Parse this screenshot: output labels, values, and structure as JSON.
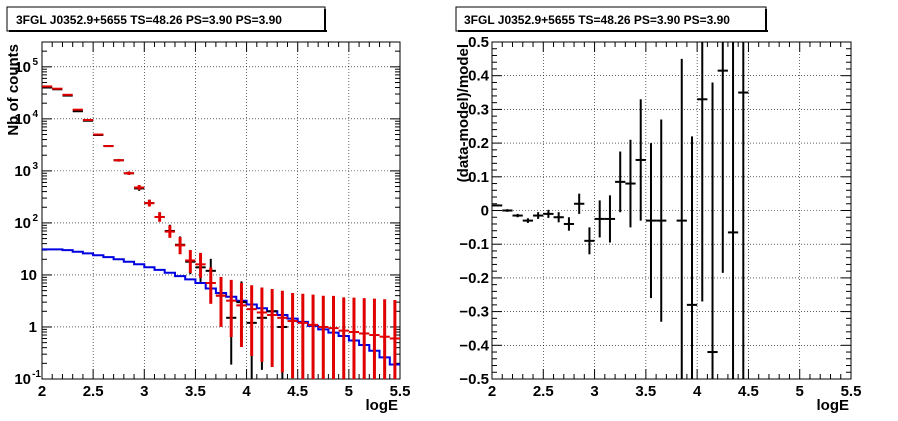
{
  "panels": [
    {
      "title": "3FGL J0352.9+5655 TS=48.26 PS=3.90 PS=3.90"
    },
    {
      "title": "3FGL J0352.9+5655 TS=48.26 PS=3.90 PS=3.90"
    }
  ],
  "colors": {
    "data": "#000000",
    "model": "#e00000",
    "background": "#0000e0",
    "grid": "#000000"
  },
  "chart_data": [
    {
      "type": "scatter",
      "title": "3FGL J0352.9+5655 TS=48.26 PS=3.90 PS=3.90",
      "xlabel": "logE",
      "ylabel": "Nb of counts",
      "xlim": [
        2,
        5.5
      ],
      "ylim": [
        0.1,
        300000
      ],
      "yscale": "log",
      "grid": true,
      "x_ticks": [
        "2",
        "2.5",
        "3",
        "3.5",
        "4",
        "4.5",
        "5",
        "5.5"
      ],
      "y_ticks": [
        {
          "value": 0.1,
          "label": "10",
          "exp": "-1"
        },
        {
          "value": 1,
          "label": "1",
          "exp": ""
        },
        {
          "value": 10,
          "label": "10",
          "exp": ""
        },
        {
          "value": 100,
          "label": "10",
          "exp": "2"
        },
        {
          "value": 1000,
          "label": "10",
          "exp": "3"
        },
        {
          "value": 10000,
          "label": "10",
          "exp": "4"
        },
        {
          "value": 100000,
          "label": "10",
          "exp": "5"
        }
      ],
      "x": [
        2.05,
        2.15,
        2.25,
        2.35,
        2.45,
        2.55,
        2.65,
        2.75,
        2.85,
        2.95,
        3.05,
        3.15,
        3.25,
        3.35,
        3.45,
        3.55,
        3.65,
        3.75,
        3.85,
        3.95,
        4.05,
        4.15,
        4.25,
        4.35,
        4.45,
        4.55,
        4.65,
        4.75,
        4.85,
        4.95,
        5.05,
        5.15,
        5.25,
        5.35,
        5.45
      ],
      "series": [
        {
          "name": "data",
          "values": [
            40000,
            37000,
            28000,
            14000,
            9200,
            4900,
            3000,
            1600,
            900,
            460,
            240,
            130,
            70,
            38,
            18,
            14,
            12,
            4,
            1.5,
            3,
            1.2,
            1.5,
            2,
            1,
            null,
            null,
            null,
            null,
            null,
            null,
            null,
            null,
            null,
            null,
            null
          ],
          "err_low": [
            0.005,
            0.005,
            0.005,
            0.008,
            0.01,
            0.014,
            0.018,
            0.025,
            0.033,
            0.047,
            0.065,
            0.09,
            0.12,
            0.17,
            0.24,
            0.28,
            0.3,
            0.55,
            0.9,
            0.6,
            1.5,
            1.0,
            0.6,
            1.5
          ],
          "err_high": [
            0.005,
            0.005,
            0.005,
            0.008,
            0.01,
            0.014,
            0.018,
            0.025,
            0.033,
            0.047,
            0.065,
            0.09,
            0.12,
            0.16,
            0.2,
            0.22,
            0.23,
            0.35,
            0.5,
            0.4,
            0.55,
            0.5,
            0.42,
            0.65
          ]
        },
        {
          "name": "model",
          "values": [
            42000,
            38000,
            29000,
            15000,
            9500,
            5000,
            3000,
            1600,
            900,
            480,
            240,
            130,
            68,
            37,
            19,
            16,
            7,
            4,
            3.2,
            2.6,
            2.2,
            1.9,
            1.7,
            1.5,
            1.3,
            1.2,
            1.1,
            1.0,
            0.95,
            0.85,
            0.8,
            0.75,
            0.7,
            0.65,
            0.6
          ],
          "err_low": [
            0.005,
            0.005,
            0.005,
            0.008,
            0.01,
            0.014,
            0.018,
            0.025,
            0.033,
            0.047,
            0.065,
            0.09,
            0.12,
            0.17,
            0.24,
            0.26,
            0.4,
            0.6,
            0.7,
            0.8,
            0.9,
            0.95,
            1.0,
            1.05,
            1.1,
            1.15,
            1.2,
            1.25,
            1.3,
            1.35,
            1.4,
            1.45,
            1.5,
            1.55,
            1.6
          ],
          "err_high": [
            0.005,
            0.005,
            0.005,
            0.008,
            0.01,
            0.014,
            0.018,
            0.025,
            0.033,
            0.047,
            0.065,
            0.09,
            0.12,
            0.16,
            0.2,
            0.22,
            0.3,
            0.36,
            0.4,
            0.43,
            0.46,
            0.48,
            0.5,
            0.52,
            0.54,
            0.56,
            0.58,
            0.6,
            0.62,
            0.64,
            0.66,
            0.68,
            0.7,
            0.72,
            0.74
          ]
        },
        {
          "name": "background",
          "type": "step",
          "values": [
            31,
            31,
            30,
            28,
            26,
            24,
            22,
            20,
            18,
            16,
            14,
            12.5,
            11,
            9.5,
            8.2,
            7,
            5.5,
            4.5,
            3.8,
            3.2,
            2.7,
            2.3,
            2.0,
            1.7,
            1.45,
            1.25,
            1.05,
            0.9,
            0.78,
            0.67,
            0.55,
            0.45,
            0.35,
            0.26,
            0.19
          ]
        }
      ]
    },
    {
      "type": "scatter",
      "title": "3FGL J0352.9+5655 TS=48.26 PS=3.90 PS=3.90",
      "xlabel": "logE",
      "ylabel": "(data-model)/model",
      "xlim": [
        2,
        5.5
      ],
      "ylim": [
        -0.5,
        0.5
      ],
      "grid": true,
      "x_ticks": [
        "2",
        "2.5",
        "3",
        "3.5",
        "4",
        "4.5",
        "5",
        "5.5"
      ],
      "y_ticks": [
        "0.5",
        "0.4",
        "0.3",
        "0.2",
        "0.1",
        "0",
        "−0.1",
        "−0.2",
        "−0.3",
        "−0.4",
        "−0.5"
      ],
      "x": [
        2.05,
        2.15,
        2.25,
        2.35,
        2.45,
        2.55,
        2.65,
        2.75,
        2.85,
        2.95,
        3.05,
        3.15,
        3.25,
        3.35,
        3.45,
        3.55,
        3.65,
        3.85,
        3.95,
        4.05,
        4.15,
        4.25,
        4.35,
        4.45
      ],
      "series": [
        {
          "name": "residual",
          "values": [
            0.015,
            0.0,
            -0.015,
            -0.03,
            -0.015,
            -0.01,
            -0.02,
            -0.04,
            0.02,
            -0.09,
            -0.025,
            -0.025,
            0.085,
            0.08,
            0.15,
            -0.03,
            -0.03,
            -0.03,
            -0.28,
            0.33,
            -0.42,
            0.415,
            -0.065,
            0.35
          ],
          "err": [
            0.003,
            0.004,
            0.005,
            0.007,
            0.01,
            0.012,
            0.015,
            0.02,
            0.03,
            0.04,
            0.055,
            0.07,
            0.09,
            0.13,
            0.18,
            0.23,
            0.3,
            0.48,
            0.5,
            0.6,
            0.8,
            0.6,
            0.7,
            0.9
          ]
        }
      ]
    }
  ]
}
